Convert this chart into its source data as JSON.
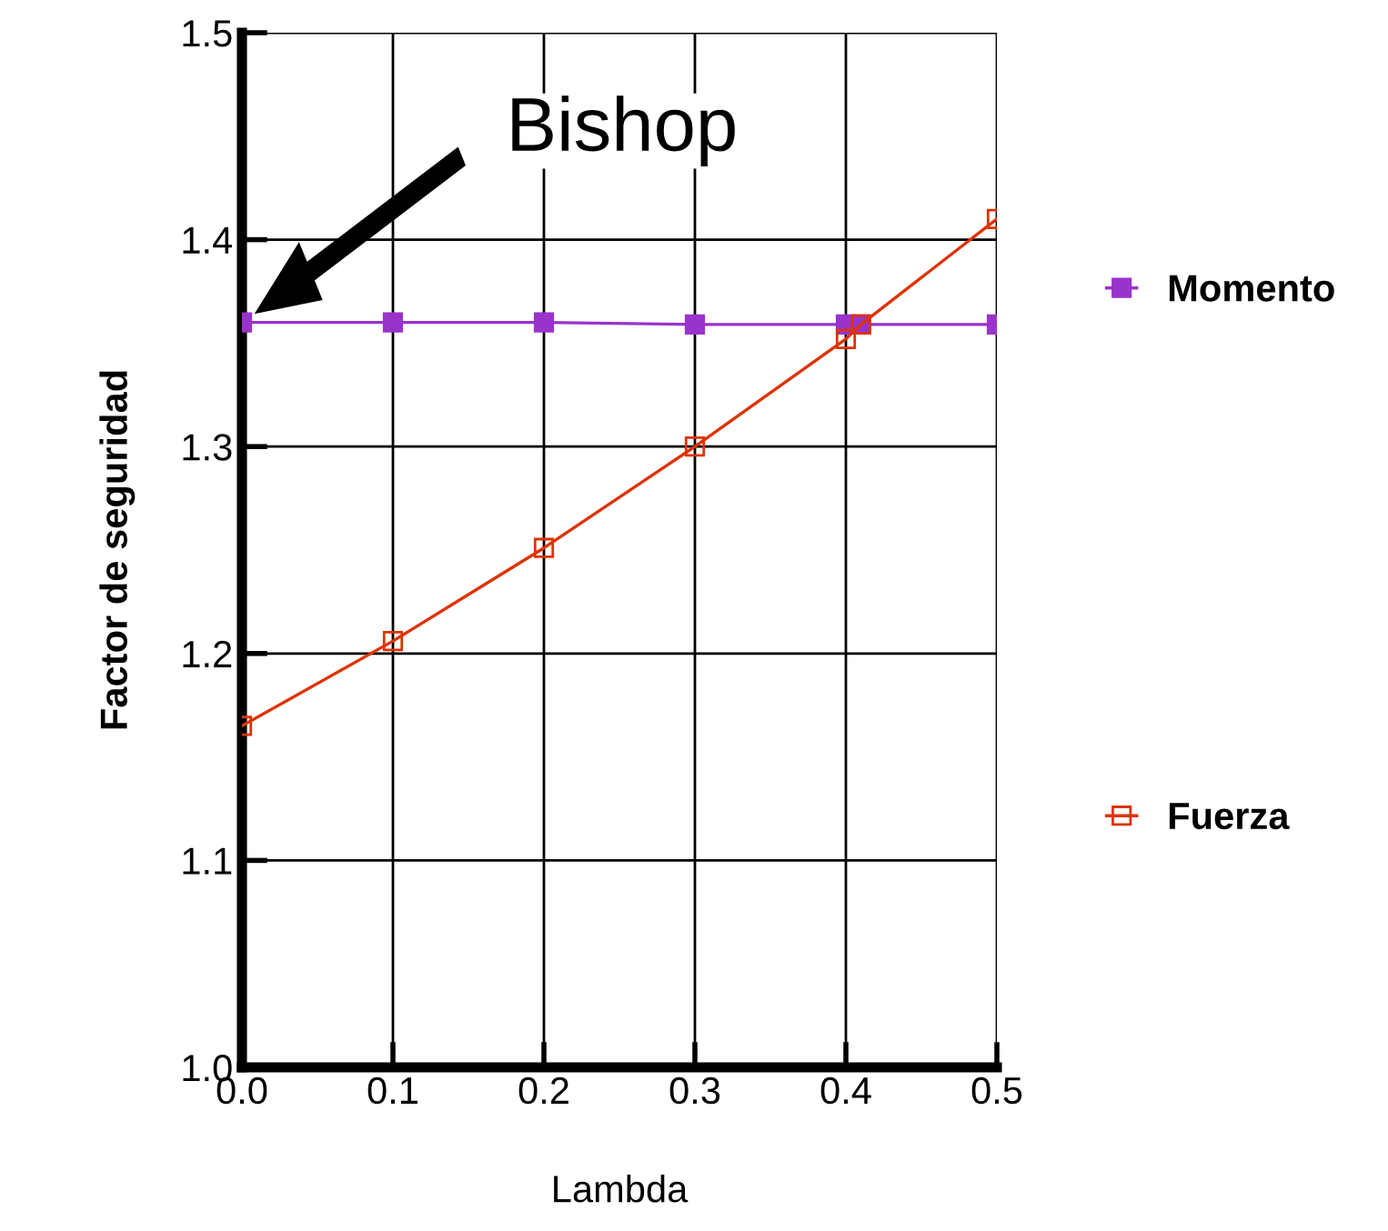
{
  "chart_data": {
    "type": "line",
    "xlabel": "Lambda",
    "ylabel": "Factor de seguridad",
    "xlim": [
      0.0,
      0.5
    ],
    "ylim": [
      1.0,
      1.5
    ],
    "xticks": [
      {
        "value": 0.0,
        "label": "0.0"
      },
      {
        "value": 0.1,
        "label": "0.1"
      },
      {
        "value": 0.2,
        "label": "0.2"
      },
      {
        "value": 0.3,
        "label": "0.3"
      },
      {
        "value": 0.4,
        "label": "0.4"
      },
      {
        "value": 0.5,
        "label": "0.5"
      }
    ],
    "yticks": [
      {
        "value": 1.0,
        "label": "1.0"
      },
      {
        "value": 1.1,
        "label": "1.1"
      },
      {
        "value": 1.2,
        "label": "1.2"
      },
      {
        "value": 1.3,
        "label": "1.3"
      },
      {
        "value": 1.4,
        "label": "1.4"
      },
      {
        "value": 1.5,
        "label": "1.5"
      }
    ],
    "grid": true,
    "legend": "right",
    "marker": "square",
    "line_style": "solid",
    "annotations": [
      "Bishop"
    ],
    "series": [
      {
        "name": "Momento",
        "color": "#9933cc",
        "x": [
          0.0,
          0.1,
          0.2,
          0.3,
          0.4,
          0.41,
          0.5
        ],
        "values": [
          1.36,
          1.36,
          1.36,
          1.359,
          1.359,
          1.359,
          1.359
        ]
      },
      {
        "name": "Fuerza",
        "color": "#dd3300",
        "x": [
          0.0,
          0.1,
          0.2,
          0.3,
          0.4,
          0.41,
          0.5
        ],
        "values": [
          1.165,
          1.206,
          1.251,
          1.3,
          1.352,
          1.359,
          1.41
        ]
      }
    ]
  }
}
